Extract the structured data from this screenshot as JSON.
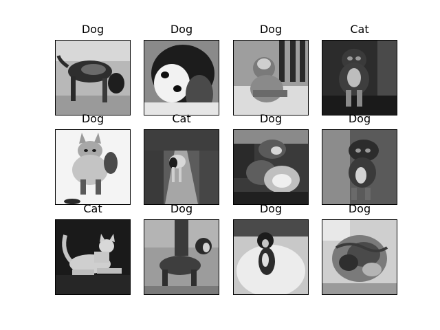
{
  "figure": {
    "images": [
      {
        "title": "Dog",
        "scene": "dog-side-profile",
        "bg": "#b4b4b4"
      },
      {
        "title": "Dog",
        "scene": "dog-closeup",
        "bg": "#7a7a7a"
      },
      {
        "title": "Dog",
        "scene": "dog-sitting-porch",
        "bg": "#8c8c8c"
      },
      {
        "title": "Cat",
        "scene": "dark-pet-sitting",
        "bg": "#303030"
      },
      {
        "title": "Dog",
        "scene": "husky-in-snow",
        "bg": "#efefef"
      },
      {
        "title": "Cat",
        "scene": "dog-on-path",
        "bg": "#6e6e6e"
      },
      {
        "title": "Dog",
        "scene": "dogs-cluster",
        "bg": "#3c3c3c"
      },
      {
        "title": "Dog",
        "scene": "small-dog-sitting",
        "bg": "#5a5a5a"
      },
      {
        "title": "Cat",
        "scene": "cat-lying",
        "bg": "#1c1c1c"
      },
      {
        "title": "Dog",
        "scene": "boxer-standing",
        "bg": "#9a9a9a"
      },
      {
        "title": "Dog",
        "scene": "dog-on-bed",
        "bg": "#d2d2d2"
      },
      {
        "title": "Dog",
        "scene": "tabby-curled",
        "bg": "#c6c6c6"
      }
    ]
  }
}
